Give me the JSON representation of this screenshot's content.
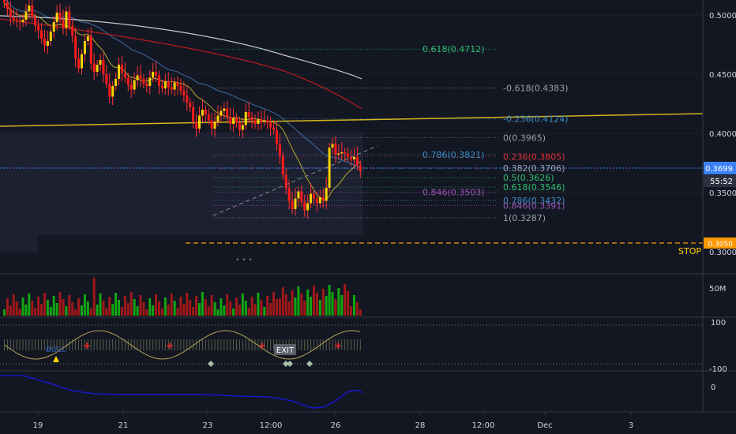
{
  "colors": {
    "background": "#131722",
    "bull_body": "#ffd200",
    "bear_body": "#ff1a1a",
    "wick": "#ff3333",
    "axis_text": "#d1d4dc",
    "grid": "#2a2e39",
    "price_line": "#3b82f6",
    "trendline": "#d4b320",
    "stop": "#ff9800",
    "vol_green": "#12a612",
    "vol_red": "#a01818",
    "osc_line": "#1717c9",
    "cci_line": "#b7a55a"
  },
  "price_axis": {
    "ticks": [
      "0.5000",
      "0.4500",
      "0.4000",
      "0.3500",
      "0.3000"
    ],
    "current_price": "0.3699",
    "countdown": "55:52",
    "stop_price": "0.3050",
    "stop_label": "STOP"
  },
  "time_axis": {
    "ticks": [
      "19",
      "21",
      "23",
      "12:00",
      "26",
      "28",
      "12:00",
      "Dec",
      "3"
    ]
  },
  "fib_labels": [
    {
      "text": "0.618(0.4712)",
      "value": 0.4712,
      "color": "#2fbf71"
    },
    {
      "text": "-0.618(0.4383)",
      "value": 0.4383,
      "color": "#9aa0ac"
    },
    {
      "text": "-0.236(0.4124)",
      "value": 0.4124,
      "color": "#3b8ec9"
    },
    {
      "text": "0(0.3965)",
      "value": 0.3965,
      "color": "#9aa0ac"
    },
    {
      "text": "0.786(0.3821)",
      "value": 0.3821,
      "color": "#3b8ec9"
    },
    {
      "text": "0.236(0.3805)",
      "value": 0.3805,
      "color": "#e0303b"
    },
    {
      "text": "0.382(0.3706)",
      "value": 0.3706,
      "color": "#9aa0ac"
    },
    {
      "text": "0.5(0.3626)",
      "value": 0.3626,
      "color": "#2fbf71"
    },
    {
      "text": "0.618(0.3546)",
      "value": 0.3546,
      "color": "#2fbf71"
    },
    {
      "text": "0.846(0.3503)",
      "value": 0.3503,
      "color": "#9b59b6"
    },
    {
      "text": "0.786(0.3432)",
      "value": 0.3432,
      "color": "#3b8ec9"
    },
    {
      "text": "0.846(0.3391)",
      "value": 0.3391,
      "color": "#9b59b6"
    },
    {
      "text": "1(0.3287)",
      "value": 0.3287,
      "color": "#9aa0ac"
    }
  ],
  "volume_axis": {
    "label": "50M"
  },
  "cci_axis": {
    "top": "100",
    "bottom": "-100"
  },
  "cci_markers": {
    "bull": "BULL",
    "exit": "EXIT"
  },
  "osc_axis": {
    "zero": "0"
  },
  "chart_data": {
    "type": "candlestick",
    "ylim": [
      0.285,
      0.515
    ],
    "closes": [
      0.51,
      0.505,
      0.498,
      0.496,
      0.495,
      0.494,
      0.496,
      0.503,
      0.508,
      0.498,
      0.491,
      0.487,
      0.48,
      0.474,
      0.478,
      0.486,
      0.494,
      0.502,
      0.496,
      0.489,
      0.503,
      0.491,
      0.482,
      0.463,
      0.455,
      0.467,
      0.478,
      0.482,
      0.459,
      0.452,
      0.458,
      0.462,
      0.45,
      0.442,
      0.431,
      0.44,
      0.446,
      0.458,
      0.451,
      0.447,
      0.441,
      0.437,
      0.445,
      0.449,
      0.446,
      0.442,
      0.44,
      0.447,
      0.452,
      0.449,
      0.44,
      0.438,
      0.444,
      0.439,
      0.437,
      0.443,
      0.44,
      0.436,
      0.432,
      0.426,
      0.422,
      0.41,
      0.404,
      0.415,
      0.42,
      0.416,
      0.411,
      0.404,
      0.41,
      0.415,
      0.419,
      0.421,
      0.414,
      0.408,
      0.413,
      0.409,
      0.403,
      0.407,
      0.418,
      0.414,
      0.411,
      0.408,
      0.412,
      0.41,
      0.411,
      0.409,
      0.405,
      0.403,
      0.391,
      0.381,
      0.365,
      0.354,
      0.343,
      0.336,
      0.345,
      0.351,
      0.342,
      0.335,
      0.341,
      0.349,
      0.345,
      0.341,
      0.346,
      0.343,
      0.354,
      0.388,
      0.391,
      0.382,
      0.383,
      0.384,
      0.383,
      0.38,
      0.378,
      0.38,
      0.373,
      0.368
    ],
    "volume_axis_label": "50M",
    "cci_range": [
      -100,
      100
    ]
  }
}
